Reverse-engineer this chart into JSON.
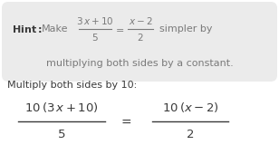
{
  "background_color": "#ffffff",
  "hint_box_color": "#ebebeb",
  "text_color": "#3a3a3a",
  "hint_text_color": "#7a7a7a",
  "hint_label": "Hint:",
  "hint_line1_a": "Make",
  "hint_frac1": "\\frac{3\\,x+10}{5}",
  "hint_equals": "=",
  "hint_frac2": "\\frac{x-2}{2}",
  "hint_line1_b": "simpler by",
  "hint_line2": "multiplying both sides by a constant.",
  "multiply_label": "Multiply both sides by 10:",
  "big_frac1_num": "10\\,(3\\,x+10)",
  "big_frac1_den": "5",
  "big_frac2_num": "10\\,(x-2)",
  "big_frac2_den": "2",
  "big_equals": "=",
  "figw": 3.08,
  "figh": 1.7,
  "dpi": 100
}
